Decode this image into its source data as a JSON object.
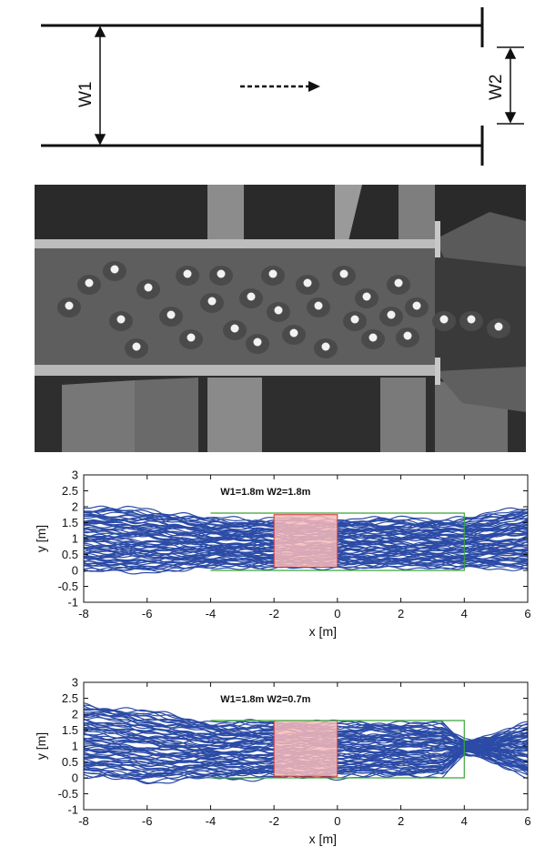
{
  "schematic": {
    "w1_label": "W1",
    "w2_label": "W2"
  },
  "chart_data": [
    {
      "type": "line",
      "annotation": "W1=1.8m  W2=1.8m",
      "xlabel": "x [m]",
      "ylabel": "y [m]",
      "xlim": [
        -8,
        6
      ],
      "ylim": [
        -1,
        3
      ],
      "xticks": [
        "-8",
        "-6",
        "-4",
        "-2",
        "0",
        "2",
        "4",
        "6"
      ],
      "yticks": [
        "-1",
        "-0.5",
        "0",
        "0.5",
        "1",
        "1.5",
        "2",
        "2.5",
        "3"
      ],
      "corridor": {
        "x": [
          -4,
          4
        ],
        "y": [
          0,
          1.8
        ]
      },
      "bottleneck": {
        "x": [
          -2,
          0
        ],
        "y": [
          0.1,
          1.75
        ]
      },
      "trajectory_band": {
        "x": [
          -8,
          -6,
          -4,
          0,
          4,
          6
        ],
        "y_low": [
          0.0,
          -0.05,
          0.1,
          0.1,
          0.1,
          0.05
        ],
        "y_high": [
          1.95,
          1.9,
          1.6,
          1.6,
          1.6,
          2.0
        ],
        "constriction_x": null,
        "constriction_width": null
      },
      "colors": {
        "trajectories": "#2b4ba6",
        "corridor": "#39a539",
        "bottleneck_fill": "#f6b8b8",
        "bottleneck_edge": "#cc3333"
      }
    },
    {
      "type": "line",
      "annotation": "W1=1.8m  W2=0.7m",
      "xlabel": "x [m]",
      "ylabel": "y [m]",
      "xlim": [
        -8,
        6
      ],
      "ylim": [
        -1,
        3
      ],
      "xticks": [
        "-8",
        "-6",
        "-4",
        "-2",
        "0",
        "2",
        "4",
        "6"
      ],
      "yticks": [
        "-1",
        "-0.5",
        "0",
        "0.5",
        "1",
        "1.5",
        "2",
        "2.5",
        "3"
      ],
      "corridor": {
        "x": [
          -4,
          4
        ],
        "y": [
          0,
          1.8
        ]
      },
      "bottleneck": {
        "x": [
          -2,
          0
        ],
        "y": [
          0.05,
          1.8
        ]
      },
      "trajectory_band": {
        "x": [
          -8,
          -6,
          -4,
          0,
          3.3,
          4,
          4.3,
          6
        ],
        "y_low": [
          0.05,
          -0.1,
          0.0,
          0.05,
          0.1,
          0.75,
          0.75,
          0.1
        ],
        "y_high": [
          2.3,
          2.1,
          1.75,
          1.75,
          1.7,
          1.15,
          1.15,
          1.7
        ],
        "constriction_x": 4,
        "constriction_width": 0.4
      },
      "colors": {
        "trajectories": "#2b4ba6",
        "corridor": "#39a539",
        "bottleneck_fill": "#f6b8b8",
        "bottleneck_edge": "#cc3333"
      }
    }
  ]
}
